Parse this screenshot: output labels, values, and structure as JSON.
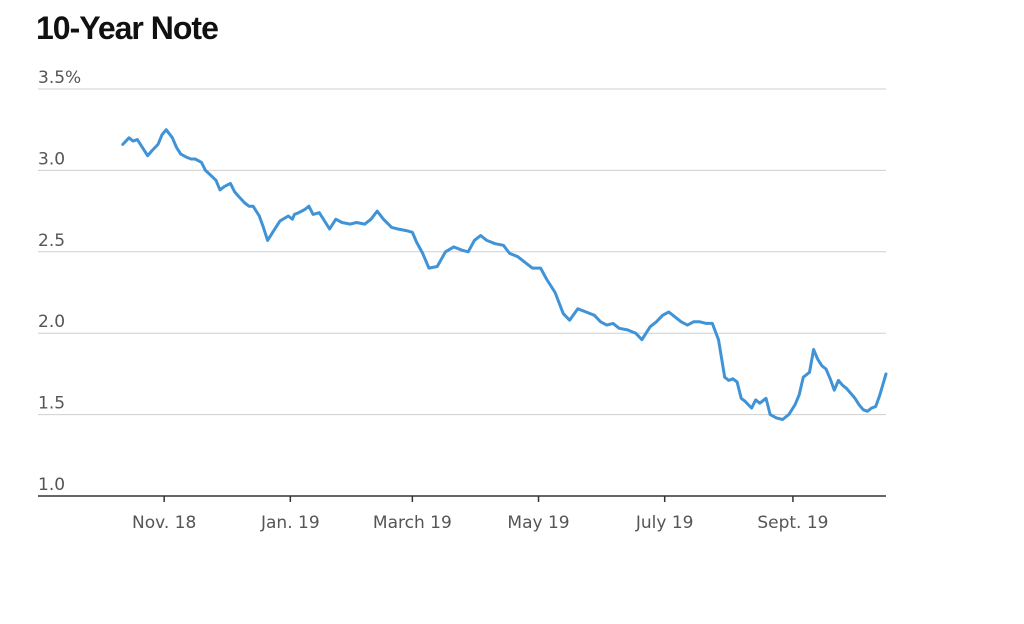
{
  "chart_data": {
    "type": "line",
    "title": "10-Year Note",
    "xlabel": "",
    "ylabel": "",
    "ylim": [
      1.0,
      3.5
    ],
    "y_ticks": [
      {
        "value": 3.5,
        "label": "3.5%"
      },
      {
        "value": 3.0,
        "label": "3.0"
      },
      {
        "value": 2.5,
        "label": "2.5"
      },
      {
        "value": 2.0,
        "label": "2.0"
      },
      {
        "value": 1.5,
        "label": "1.5"
      },
      {
        "value": 1.0,
        "label": "1.0"
      }
    ],
    "x_ticks": [
      {
        "date": "2018-11-01",
        "label": "Nov. 18"
      },
      {
        "date": "2019-01-01",
        "label": "Jan. 19"
      },
      {
        "date": "2019-03-01",
        "label": "March 19"
      },
      {
        "date": "2019-05-01",
        "label": "May 19"
      },
      {
        "date": "2019-07-01",
        "label": "July 19"
      },
      {
        "date": "2019-09-01",
        "label": "Sept. 19"
      }
    ],
    "xlim": [
      "2018-09-01",
      "2019-10-16"
    ],
    "grid": true,
    "line_color": "#3f93d6",
    "series": [
      {
        "x": [
          "2018-10-12",
          "2018-10-15",
          "2018-10-17",
          "2018-10-19",
          "2018-10-22",
          "2018-10-24",
          "2018-10-26",
          "2018-10-29",
          "2018-10-31",
          "2018-11-02",
          "2018-11-05",
          "2018-11-07",
          "2018-11-09",
          "2018-11-12",
          "2018-11-14",
          "2018-11-16",
          "2018-11-19",
          "2018-11-21",
          "2018-11-26",
          "2018-11-28",
          "2018-11-30",
          "2018-12-03",
          "2018-12-05",
          "2018-12-07",
          "2018-12-10",
          "2018-12-12",
          "2018-12-14",
          "2018-12-17",
          "2018-12-19",
          "2018-12-21",
          "2018-12-24",
          "2018-12-27",
          "2018-12-31",
          "2019-01-02",
          "2019-01-03",
          "2019-01-05",
          "2019-01-08",
          "2019-01-10",
          "2019-01-12",
          "2019-01-15",
          "2019-01-18",
          "2019-01-20",
          "2019-01-23",
          "2019-01-26",
          "2019-01-30",
          "2019-02-02",
          "2019-02-06",
          "2019-02-09",
          "2019-02-12",
          "2019-02-15",
          "2019-02-19",
          "2019-02-22",
          "2019-02-26",
          "2019-03-01",
          "2019-03-03",
          "2019-03-06",
          "2019-03-09",
          "2019-03-13",
          "2019-03-17",
          "2019-03-21",
          "2019-03-25",
          "2019-03-28",
          "2019-03-31",
          "2019-04-03",
          "2019-04-06",
          "2019-04-10",
          "2019-04-14",
          "2019-04-17",
          "2019-04-21",
          "2019-04-24",
          "2019-04-28",
          "2019-05-02",
          "2019-05-05",
          "2019-05-09",
          "2019-05-13",
          "2019-05-16",
          "2019-05-20",
          "2019-05-24",
          "2019-05-28",
          "2019-05-31",
          "2019-06-03",
          "2019-06-06",
          "2019-06-09",
          "2019-06-13",
          "2019-06-17",
          "2019-06-20",
          "2019-06-24",
          "2019-06-27",
          "2019-06-30",
          "2019-07-03",
          "2019-07-06",
          "2019-07-09",
          "2019-07-12",
          "2019-07-15",
          "2019-07-18",
          "2019-07-21",
          "2019-07-24",
          "2019-07-27",
          "2019-07-30",
          "2019-08-01",
          "2019-08-03",
          "2019-08-05",
          "2019-08-07",
          "2019-08-09",
          "2019-08-12",
          "2019-08-14",
          "2019-08-16",
          "2019-08-19",
          "2019-08-21",
          "2019-08-24",
          "2019-08-27",
          "2019-08-30",
          "2019-09-02",
          "2019-09-04",
          "2019-09-06",
          "2019-09-09",
          "2019-09-11",
          "2019-09-13",
          "2019-09-15",
          "2019-09-17",
          "2019-09-19",
          "2019-09-21",
          "2019-09-23",
          "2019-09-25",
          "2019-09-27",
          "2019-09-29",
          "2019-10-01",
          "2019-10-03",
          "2019-10-05",
          "2019-10-07",
          "2019-10-09",
          "2019-10-11",
          "2019-10-13",
          "2019-10-16"
        ],
        "values": [
          3.16,
          3.2,
          3.18,
          3.19,
          3.13,
          3.09,
          3.12,
          3.16,
          3.22,
          3.25,
          3.2,
          3.14,
          3.1,
          3.08,
          3.07,
          3.07,
          3.05,
          3.0,
          2.94,
          2.88,
          2.9,
          2.92,
          2.87,
          2.84,
          2.8,
          2.78,
          2.78,
          2.72,
          2.65,
          2.57,
          2.63,
          2.69,
          2.72,
          2.7,
          2.73,
          2.74,
          2.76,
          2.78,
          2.73,
          2.74,
          2.68,
          2.64,
          2.7,
          2.68,
          2.67,
          2.68,
          2.67,
          2.7,
          2.75,
          2.7,
          2.65,
          2.64,
          2.63,
          2.62,
          2.56,
          2.49,
          2.4,
          2.41,
          2.5,
          2.53,
          2.51,
          2.5,
          2.57,
          2.6,
          2.57,
          2.55,
          2.54,
          2.49,
          2.47,
          2.44,
          2.4,
          2.4,
          2.33,
          2.25,
          2.12,
          2.08,
          2.15,
          2.13,
          2.11,
          2.07,
          2.05,
          2.06,
          2.03,
          2.02,
          2.0,
          1.96,
          2.04,
          2.07,
          2.11,
          2.13,
          2.1,
          2.07,
          2.05,
          2.07,
          2.07,
          2.06,
          2.06,
          1.96,
          1.73,
          1.71,
          1.72,
          1.7,
          1.6,
          1.58,
          1.54,
          1.59,
          1.57,
          1.6,
          1.5,
          1.48,
          1.47,
          1.5,
          1.56,
          1.62,
          1.73,
          1.76,
          1.9,
          1.84,
          1.8,
          1.78,
          1.72,
          1.65,
          1.71,
          1.68,
          1.66,
          1.63,
          1.6,
          1.56,
          1.53,
          1.52,
          1.54,
          1.55,
          1.62,
          1.75
        ]
      }
    ]
  }
}
